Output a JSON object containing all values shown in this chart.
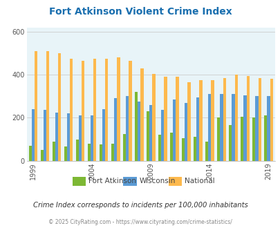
{
  "title": "Fort Atkinson Violent Crime Index",
  "title_color": "#1a6faf",
  "footnote": "Crime Index corresponds to incidents per 100,000 inhabitants",
  "copyright": "© 2025 CityRating.com - https://www.cityrating.com/crime-statistics/",
  "years": [
    1999,
    2000,
    2001,
    2002,
    2003,
    2004,
    2005,
    2006,
    2007,
    2008,
    2009,
    2010,
    2011,
    2012,
    2013,
    2014,
    2015,
    2016,
    2017,
    2018,
    2019
  ],
  "fort_atkinson": [
    70,
    50,
    90,
    65,
    100,
    80,
    75,
    80,
    125,
    320,
    230,
    120,
    130,
    105,
    110,
    90,
    200,
    165,
    205,
    200,
    210
  ],
  "wisconsin": [
    240,
    235,
    225,
    220,
    210,
    210,
    240,
    290,
    300,
    275,
    260,
    235,
    285,
    270,
    295,
    310,
    310,
    310,
    305,
    300,
    300
  ],
  "national": [
    510,
    510,
    500,
    475,
    465,
    475,
    475,
    480,
    465,
    430,
    405,
    390,
    390,
    365,
    375,
    375,
    385,
    400,
    395,
    385,
    380
  ],
  "bar_width": 0.25,
  "ylim": [
    0,
    620
  ],
  "yticks": [
    0,
    200,
    400,
    600
  ],
  "bg_color": "#e8f4f8",
  "fort_atkinson_color": "#7db834",
  "wisconsin_color": "#5b9bd5",
  "national_color": "#fdb94d",
  "grid_color": "#cccccc",
  "xtick_years": [
    1999,
    2004,
    2009,
    2014,
    2019
  ],
  "legend_labels": [
    "Fort Atkinson",
    "Wisconsin",
    "National"
  ],
  "footnote_color": "#333333",
  "copyright_color": "#888888"
}
